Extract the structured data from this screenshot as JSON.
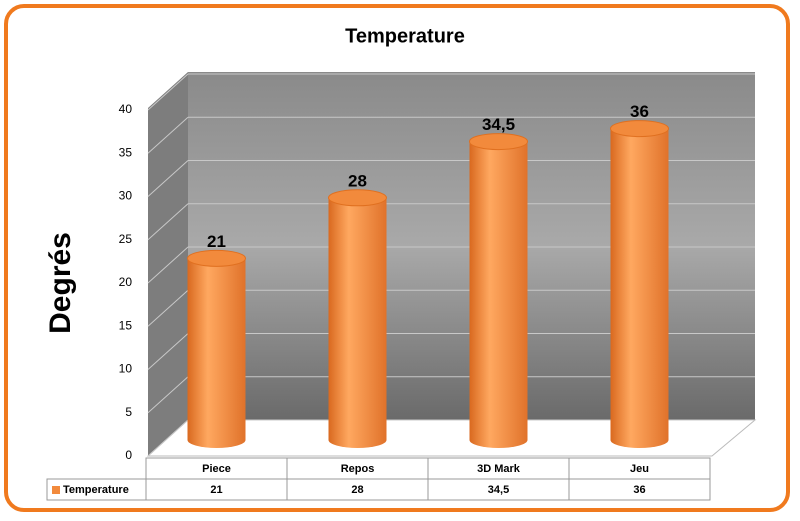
{
  "chart_data": {
    "type": "bar",
    "title": "Temperature",
    "y_label": "Degrés",
    "categories": [
      "Piece",
      "Repos",
      "3D Mark",
      "Jeu"
    ],
    "series": [
      {
        "name": "Temperature",
        "color": "#f28a3c",
        "values": [
          21,
          28,
          34.5,
          36
        ],
        "value_labels": [
          "21",
          "28",
          "34,5",
          "36"
        ]
      }
    ],
    "ylim": [
      0,
      40
    ],
    "yticks": [
      0,
      5,
      10,
      15,
      20,
      25,
      30,
      35,
      40
    ],
    "grid": true,
    "data_table": true
  }
}
